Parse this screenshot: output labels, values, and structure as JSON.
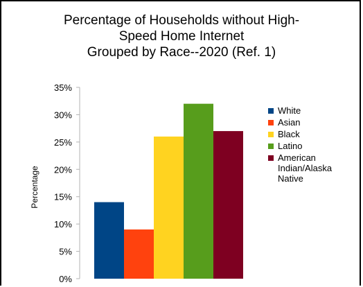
{
  "chart_data": {
    "type": "bar",
    "title": "Percentage of Households without High-\nSpeed Home Internet\nGrouped by Race--2020 (Ref. 1)",
    "xlabel": "",
    "ylabel": "Percentage",
    "ylim": [
      0,
      35
    ],
    "yticks": [
      "0%",
      "5%",
      "10%",
      "15%",
      "20%",
      "25%",
      "30%",
      "35%"
    ],
    "ytick_values": [
      0,
      5,
      10,
      15,
      20,
      25,
      30,
      35
    ],
    "grid": false,
    "legend_position": "right",
    "series": [
      {
        "name": "White",
        "values": [
          14
        ],
        "color": "#004586"
      },
      {
        "name": "Asian",
        "values": [
          9
        ],
        "color": "#ff420e"
      },
      {
        "name": "Black",
        "values": [
          26
        ],
        "color": "#ffd320"
      },
      {
        "name": "Latino",
        "values": [
          32
        ],
        "color": "#579d1c"
      },
      {
        "name": "American Indian/Alaska Native",
        "values": [
          27
        ],
        "color": "#7e0021"
      }
    ]
  }
}
